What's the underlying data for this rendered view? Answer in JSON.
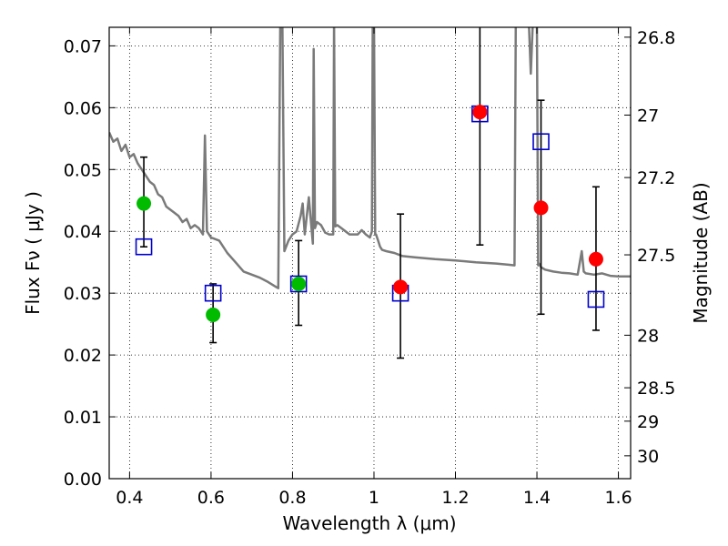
{
  "chart_data": {
    "type": "scatter",
    "title": "",
    "xlabel": "Wavelength  λ (μm)",
    "ylabel": "Flux  Fν  ( μJy )",
    "y2label": "Magnitude (AB)",
    "xlim": [
      0.35,
      1.63
    ],
    "ylim": [
      0.0,
      0.073
    ],
    "grid": true,
    "grid_style": "dotted",
    "x_ticks": [
      0.4,
      0.6,
      0.8,
      1.0,
      1.2,
      1.4,
      1.6
    ],
    "x_tick_labels": [
      "0.4",
      "0.6",
      "0.8",
      "1",
      "1.2",
      "1.4",
      "1.6"
    ],
    "y_ticks": [
      0.0,
      0.01,
      0.02,
      0.03,
      0.04,
      0.05,
      0.06,
      0.07
    ],
    "y_tick_labels": [
      "0.00",
      "0.01",
      "0.02",
      "0.03",
      "0.04",
      "0.05",
      "0.06",
      "0.07"
    ],
    "y2_ticks": [
      {
        "flux": 0.0714,
        "label": "26.8"
      },
      {
        "flux": 0.0588,
        "label": "27"
      },
      {
        "flux": 0.0487,
        "label": "27.2"
      },
      {
        "flux": 0.0362,
        "label": "27.5"
      },
      {
        "flux": 0.0232,
        "label": "28"
      },
      {
        "flux": 0.0147,
        "label": "28.5"
      },
      {
        "flux": 0.0093,
        "label": "29"
      },
      {
        "flux": 0.0037,
        "label": "30"
      }
    ],
    "colors": {
      "spectrum": "#7a7a7a",
      "model_points": "#0000cc",
      "observed_optical": "#00bb00",
      "observed_nir": "#ff0000",
      "error_bars": "#000000",
      "grid": "#000000"
    },
    "spectrum": {
      "x": [
        0.35,
        0.36,
        0.37,
        0.38,
        0.39,
        0.4,
        0.41,
        0.42,
        0.43,
        0.44,
        0.45,
        0.46,
        0.47,
        0.48,
        0.49,
        0.5,
        0.51,
        0.52,
        0.53,
        0.54,
        0.55,
        0.56,
        0.57,
        0.58,
        0.585,
        0.59,
        0.6,
        0.62,
        0.64,
        0.66,
        0.68,
        0.7,
        0.72,
        0.74,
        0.76,
        0.765,
        0.77,
        0.775,
        0.78,
        0.79,
        0.8,
        0.81,
        0.82,
        0.825,
        0.83,
        0.84,
        0.85,
        0.852,
        0.855,
        0.86,
        0.87,
        0.88,
        0.89,
        0.9,
        0.902,
        0.905,
        0.91,
        0.92,
        0.94,
        0.96,
        0.97,
        0.98,
        0.99,
        0.995,
        0.997,
        1.0,
        1.003,
        1.005,
        1.01,
        1.015,
        1.02,
        1.03,
        1.05,
        1.07,
        1.1,
        1.15,
        1.2,
        1.25,
        1.3,
        1.33,
        1.345,
        1.348,
        1.35,
        1.38,
        1.385,
        1.39,
        1.4,
        1.403,
        1.405,
        1.41,
        1.42,
        1.44,
        1.46,
        1.48,
        1.5,
        1.51,
        1.515,
        1.52,
        1.54,
        1.56,
        1.58,
        1.6,
        1.63
      ],
      "y": [
        0.056,
        0.0545,
        0.055,
        0.053,
        0.054,
        0.052,
        0.0525,
        0.051,
        0.05,
        0.049,
        0.048,
        0.0475,
        0.046,
        0.0455,
        0.044,
        0.0435,
        0.043,
        0.0425,
        0.0415,
        0.042,
        0.0405,
        0.041,
        0.0405,
        0.0395,
        0.0555,
        0.04,
        0.039,
        0.0385,
        0.0365,
        0.035,
        0.0335,
        0.033,
        0.0325,
        0.0318,
        0.031,
        0.0308,
        0.074,
        0.074,
        0.0368,
        0.0385,
        0.0395,
        0.04,
        0.0425,
        0.0445,
        0.0395,
        0.0455,
        0.038,
        0.0695,
        0.0405,
        0.0415,
        0.041,
        0.0398,
        0.0395,
        0.0395,
        0.074,
        0.0408,
        0.041,
        0.0405,
        0.0395,
        0.0395,
        0.0402,
        0.0395,
        0.039,
        0.04,
        0.074,
        0.074,
        0.0395,
        0.0395,
        0.0385,
        0.0375,
        0.037,
        0.0368,
        0.0365,
        0.036,
        0.0358,
        0.0355,
        0.0353,
        0.035,
        0.0348,
        0.0346,
        0.0345,
        0.074,
        0.074,
        0.074,
        0.0655,
        0.074,
        0.074,
        0.0345,
        0.0348,
        0.0342,
        0.0338,
        0.0335,
        0.0333,
        0.0332,
        0.033,
        0.0368,
        0.0335,
        0.0332,
        0.033,
        0.0332,
        0.0328,
        0.0327,
        0.0327
      ]
    },
    "series": [
      {
        "role": "model",
        "marker": "open-square",
        "points": [
          {
            "x": 0.435,
            "y": 0.0375
          },
          {
            "x": 0.605,
            "y": 0.03
          },
          {
            "x": 0.815,
            "y": 0.0315
          },
          {
            "x": 1.065,
            "y": 0.03
          },
          {
            "x": 1.26,
            "y": 0.059
          },
          {
            "x": 1.41,
            "y": 0.0545
          },
          {
            "x": 1.545,
            "y": 0.029
          }
        ]
      },
      {
        "role": "observed-optical",
        "marker": "filled-circle",
        "points": [
          {
            "x": 0.435,
            "y": 0.0445,
            "err_low": 0.0375,
            "err_high": 0.052
          },
          {
            "x": 0.605,
            "y": 0.0265,
            "err_low": 0.022,
            "err_high": 0.0315
          },
          {
            "x": 0.815,
            "y": 0.0315,
            "err_low": 0.0248,
            "err_high": 0.0385
          }
        ]
      },
      {
        "role": "observed-nir",
        "marker": "filled-circle",
        "points": [
          {
            "x": 1.065,
            "y": 0.031,
            "err_low": 0.0195,
            "err_high": 0.0428
          },
          {
            "x": 1.26,
            "y": 0.0593,
            "err_low": 0.0378,
            "err_high": 0.0752
          },
          {
            "x": 1.41,
            "y": 0.0438,
            "err_low": 0.0266,
            "err_high": 0.0612
          },
          {
            "x": 1.545,
            "y": 0.0355,
            "err_low": 0.024,
            "err_high": 0.0472
          }
        ]
      }
    ]
  }
}
